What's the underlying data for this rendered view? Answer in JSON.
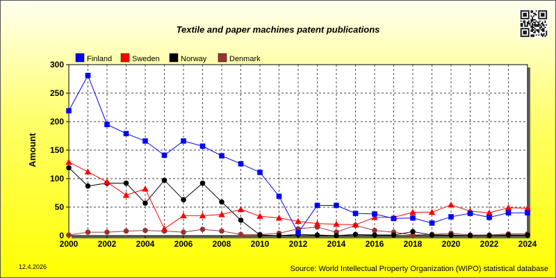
{
  "chart_data": {
    "type": "line",
    "title": "Textile and paper machines patent publications",
    "xlabel": "",
    "ylabel": "Amount",
    "xlim": [
      2000,
      2024
    ],
    "ylim": [
      0,
      300
    ],
    "x_ticks": [
      2000,
      2002,
      2004,
      2006,
      2008,
      2010,
      2012,
      2014,
      2016,
      2018,
      2020,
      2022,
      2024
    ],
    "y_ticks": [
      0,
      50,
      100,
      150,
      200,
      250,
      300
    ],
    "grid": true,
    "legend": "top-left",
    "x": [
      2000,
      2001,
      2002,
      2003,
      2004,
      2005,
      2006,
      2007,
      2008,
      2009,
      2010,
      2011,
      2012,
      2013,
      2014,
      2015,
      2016,
      2017,
      2018,
      2019,
      2020,
      2021,
      2022,
      2023,
      2024
    ],
    "series": [
      {
        "name": "Finland",
        "color": "#0000ff",
        "marker": "square",
        "values": [
          219,
          281,
          195,
          179,
          166,
          141,
          166,
          157,
          140,
          126,
          111,
          69,
          5,
          53,
          53,
          39,
          38,
          30,
          31,
          22,
          33,
          39,
          32,
          40,
          40
        ]
      },
      {
        "name": "Sweden",
        "color": "#ff0000",
        "marker": "triangle",
        "values": [
          129,
          112,
          94,
          71,
          82,
          12,
          35,
          35,
          37,
          46,
          34,
          31,
          25,
          21,
          20,
          19,
          32,
          32,
          41,
          41,
          54,
          43,
          40,
          49,
          48
        ]
      },
      {
        "name": "Norway",
        "color": "#000000",
        "marker": "circle",
        "values": [
          119,
          87,
          92,
          92,
          57,
          97,
          63,
          92,
          59,
          27,
          1,
          0,
          2,
          1,
          0,
          2,
          1,
          1,
          7,
          1,
          1,
          0,
          0,
          1,
          1
        ]
      },
      {
        "name": "Denmark",
        "color": "#993333",
        "marker": "circle",
        "values": [
          1,
          6,
          6,
          8,
          9,
          8,
          6,
          11,
          8,
          2,
          2,
          4,
          12,
          15,
          6,
          18,
          9,
          6,
          1,
          2,
          4,
          1,
          1,
          3,
          3
        ]
      }
    ]
  },
  "footer": {
    "date": "12.4.2026",
    "source": "Source: World Intellectual Property Organization (WIPO) statistical database"
  }
}
